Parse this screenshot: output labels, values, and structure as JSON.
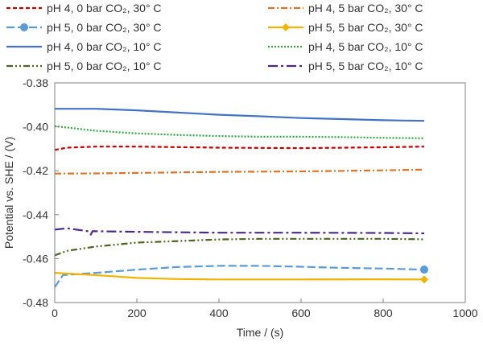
{
  "chart_data": {
    "type": "line",
    "title": "",
    "xlabel": "Time / (s)",
    "ylabel": "Potential vs. SHE / (V)",
    "xlim": [
      0,
      1000
    ],
    "ylim": [
      -0.48,
      -0.38
    ],
    "x_ticks": [
      "0",
      "200",
      "400",
      "600",
      "800",
      "1000"
    ],
    "y_ticks": [
      "-0.38",
      "-0.40",
      "-0.42",
      "-0.44",
      "-0.46",
      "-0.48"
    ],
    "grid": false,
    "legend_position": "top",
    "series": [
      {
        "name": "pH 4, 0 bar CO₂, 30° C",
        "color": "#c00000",
        "dash": "short-dash",
        "marker": "none",
        "points": [
          [
            0,
            -0.4105
          ],
          [
            30,
            -0.4095
          ],
          [
            100,
            -0.409
          ],
          [
            200,
            -0.409
          ],
          [
            400,
            -0.4095
          ],
          [
            600,
            -0.4097
          ],
          [
            800,
            -0.4093
          ],
          [
            900,
            -0.409
          ]
        ]
      },
      {
        "name": "pH 4, 5 bar CO₂, 30° C",
        "color": "#d8752c",
        "dash": "dash-dot",
        "marker": "none",
        "points": [
          [
            0,
            -0.4213
          ],
          [
            100,
            -0.4212
          ],
          [
            200,
            -0.421
          ],
          [
            400,
            -0.4205
          ],
          [
            600,
            -0.4203
          ],
          [
            800,
            -0.4198
          ],
          [
            900,
            -0.4195
          ]
        ]
      },
      {
        "name": "pH 5, 0 bar CO₂, 30° C",
        "color": "#5b9bd5",
        "dash": "long-dash",
        "marker": "circle",
        "points": [
          [
            0,
            -0.473
          ],
          [
            20,
            -0.4675
          ],
          [
            100,
            -0.4665
          ],
          [
            200,
            -0.465
          ],
          [
            300,
            -0.4638
          ],
          [
            400,
            -0.4633
          ],
          [
            500,
            -0.4633
          ],
          [
            600,
            -0.4637
          ],
          [
            700,
            -0.4642
          ],
          [
            800,
            -0.4645
          ],
          [
            900,
            -0.465
          ]
        ]
      },
      {
        "name": "pH 5, 5 bar CO₂, 30° C",
        "color": "#f0b400",
        "dash": "solid",
        "marker": "diamond",
        "points": [
          [
            0,
            -0.4665
          ],
          [
            100,
            -0.4675
          ],
          [
            200,
            -0.4688
          ],
          [
            300,
            -0.4693
          ],
          [
            400,
            -0.4695
          ],
          [
            600,
            -0.4695
          ],
          [
            800,
            -0.4694
          ],
          [
            900,
            -0.4695
          ]
        ]
      },
      {
        "name": "pH 4, 0 bar CO₂, 10° C",
        "color": "#4472c4",
        "dash": "solid",
        "marker": "none",
        "points": [
          [
            0,
            -0.3918
          ],
          [
            100,
            -0.3918
          ],
          [
            200,
            -0.3925
          ],
          [
            300,
            -0.3935
          ],
          [
            400,
            -0.3945
          ],
          [
            500,
            -0.3952
          ],
          [
            600,
            -0.396
          ],
          [
            700,
            -0.3965
          ],
          [
            800,
            -0.397
          ],
          [
            900,
            -0.3973
          ]
        ]
      },
      {
        "name": "pH 4, 5 bar CO₂, 10° C",
        "color": "#38a045",
        "dash": "dotted",
        "marker": "none",
        "points": [
          [
            0,
            -0.3997
          ],
          [
            100,
            -0.4018
          ],
          [
            200,
            -0.403
          ],
          [
            300,
            -0.4037
          ],
          [
            400,
            -0.4042
          ],
          [
            500,
            -0.4045
          ],
          [
            600,
            -0.4045
          ],
          [
            700,
            -0.4047
          ],
          [
            800,
            -0.405
          ],
          [
            900,
            -0.4052
          ]
        ]
      },
      {
        "name": "pH 5, 0 bar CO₂, 10° C",
        "color": "#4f6228",
        "dash": "dash-dot-dot",
        "marker": "none",
        "points": [
          [
            0,
            -0.4585
          ],
          [
            30,
            -0.4565
          ],
          [
            100,
            -0.4545
          ],
          [
            200,
            -0.4527
          ],
          [
            300,
            -0.452
          ],
          [
            400,
            -0.4513
          ],
          [
            500,
            -0.451
          ],
          [
            600,
            -0.451
          ],
          [
            700,
            -0.451
          ],
          [
            800,
            -0.451
          ],
          [
            900,
            -0.4512
          ]
        ]
      },
      {
        "name": "pH 5, 5 bar CO₂, 10° C",
        "color": "#4b2a8a",
        "dash": "long-dash-dot",
        "marker": "none",
        "points": [
          [
            0,
            -0.4468
          ],
          [
            30,
            -0.4462
          ],
          [
            80,
            -0.4475
          ],
          [
            88,
            -0.449
          ],
          [
            92,
            -0.4475
          ],
          [
            200,
            -0.4478
          ],
          [
            400,
            -0.4482
          ],
          [
            600,
            -0.4482
          ],
          [
            800,
            -0.4483
          ],
          [
            900,
            -0.4485
          ]
        ]
      }
    ]
  }
}
